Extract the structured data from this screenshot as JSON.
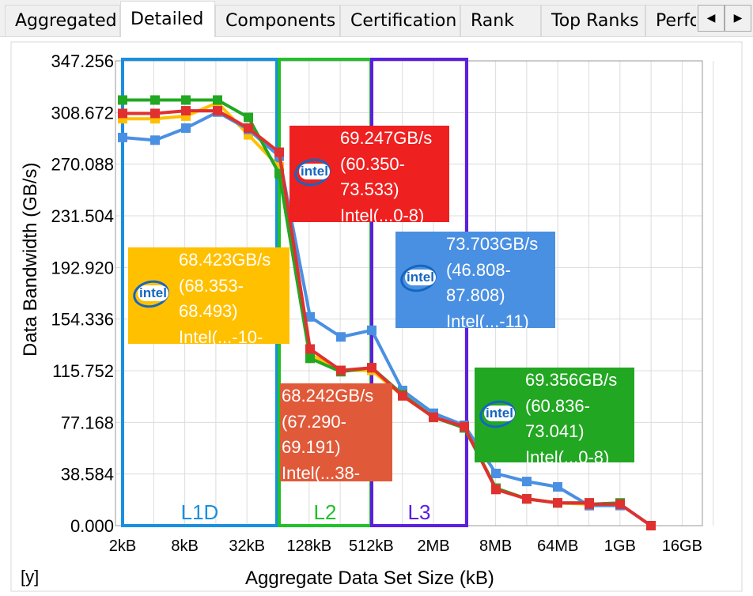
{
  "tabs": [
    {
      "label": "Aggregated",
      "active": false
    },
    {
      "label": "Detailed",
      "active": true
    },
    {
      "label": "Components",
      "active": false
    },
    {
      "label": "Certification",
      "active": false
    },
    {
      "label": "Rank",
      "active": false
    },
    {
      "label": "Top Ranks",
      "active": false
    },
    {
      "label": "Performance",
      "active": false
    }
  ],
  "tab_scroll": {
    "left": "◀",
    "right": "▶"
  },
  "corner_label": "[y]",
  "chart_data": {
    "type": "line",
    "xlabel": "Aggregate Data Set Size (kB)",
    "ylabel": "Data Bandwidth (GB/s)",
    "x_tick_labels": [
      "2kB",
      "8kB",
      "32kB",
      "128kB",
      "512kB",
      "2MB",
      "8MB",
      "64MB",
      "1GB",
      "16GB"
    ],
    "y_tick_labels": [
      "0.000",
      "38.584",
      "77.168",
      "115.752",
      "154.336",
      "192.920",
      "231.504",
      "270.088",
      "308.672",
      "347.256"
    ],
    "ylim": [
      0,
      347.256
    ],
    "grid": true,
    "colors": {
      "yellow": "#ffc000",
      "blue": "#4a90e2",
      "green": "#22a722",
      "red": "#e03030"
    },
    "x": [
      "2kB",
      "4kB",
      "8kB",
      "16kB",
      "32kB",
      "64kB",
      "128kB",
      "256kB",
      "512kB",
      "1MB",
      "2MB",
      "4MB",
      "8MB",
      "16MB",
      "32MB",
      "64MB",
      "128MB",
      "256MB",
      "1GB",
      "2GB"
    ],
    "series": [
      {
        "color": "#ffc000",
        "values": [
          304,
          304,
          306,
          316,
          292,
          268,
          128,
          116,
          116,
          97,
          81,
          74,
          28,
          20,
          17,
          16,
          16,
          16,
          null,
          null
        ]
      },
      {
        "color": "#4a90e2",
        "values": [
          290,
          288,
          297,
          309,
          296,
          276,
          156,
          141,
          146,
          101,
          84,
          75,
          39,
          33,
          29,
          15,
          15,
          15,
          16,
          0
        ]
      },
      {
        "color": "#22a722",
        "values": [
          318,
          318,
          318,
          318,
          305,
          263,
          125,
          115,
          118,
          98,
          81,
          73,
          28,
          20,
          17,
          17,
          16,
          17,
          null,
          null
        ]
      },
      {
        "color": "#e03030",
        "values": [
          308,
          308,
          310,
          310,
          297,
          279,
          132,
          116,
          118,
          97,
          81,
          74,
          27,
          20,
          17,
          17,
          16,
          16,
          16,
          0
        ]
      }
    ],
    "regions": [
      {
        "label": "L1D",
        "color": "#1a8fe0"
      },
      {
        "label": "L2",
        "color": "#22c02a"
      },
      {
        "label": "L3",
        "color": "#5b1fe0"
      }
    ],
    "annotations": [
      {
        "color": "#ef2020",
        "lines": [
          "69.247GB/s",
          "(60.350-",
          "73.533)",
          "Intel(...0-8)"
        ],
        "logo": "intel-logo"
      },
      {
        "color": "#ffc000",
        "lines": [
          "68.423GB/s",
          "(68.353-",
          "68.493)",
          "Intel(...-10-"
        ],
        "logo": "intel-logo"
      },
      {
        "color": "#4a90e2",
        "lines": [
          "73.703GB/s",
          "(46.808-",
          "87.808)",
          "Intel(...-11)"
        ],
        "logo": "intel-logo"
      },
      {
        "color": "#e05a3a",
        "lines": [
          "68.242GB/s",
          "(67.290-",
          "69.191)",
          "Intel(...38-"
        ],
        "logo": null
      },
      {
        "color": "#22a722",
        "lines": [
          "69.356GB/s",
          "(60.836-",
          "73.041)",
          "Intel(...0-8)"
        ],
        "logo": "intel-logo"
      }
    ],
    "logo_text": "intel"
  }
}
